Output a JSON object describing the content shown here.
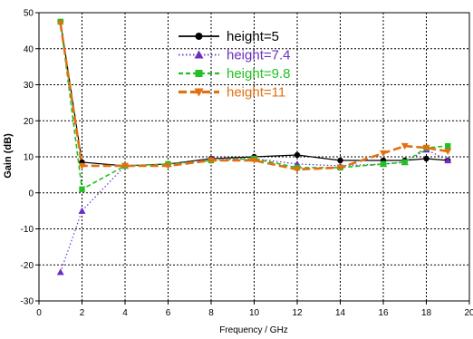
{
  "chart_data": {
    "type": "line",
    "title": "",
    "xlabel": "Frequency / GHz",
    "ylabel": "Gain (dB)",
    "xlim": [
      0,
      20
    ],
    "ylim": [
      -30,
      50
    ],
    "xticks": [
      0,
      2,
      4,
      6,
      8,
      10,
      12,
      14,
      16,
      18,
      20
    ],
    "yticks": [
      -30,
      -20,
      -10,
      0,
      10,
      20,
      30,
      40,
      50
    ],
    "grid": true,
    "legend_position": "top-center",
    "series": [
      {
        "name": "height=5",
        "color": "#000000",
        "marker": "circle",
        "line_style": "solid",
        "x": [
          1,
          2,
          4,
          6,
          8,
          10,
          12,
          14,
          16,
          17,
          18,
          19
        ],
        "y": [
          47.5,
          8.5,
          7.5,
          8,
          9.5,
          10,
          10.5,
          9,
          9,
          9,
          9.5,
          9
        ]
      },
      {
        "name": "height=7.4",
        "color": "#6a2fc0",
        "marker": "triangle-up",
        "line_style": "dotted",
        "x": [
          1,
          2,
          4,
          6,
          8,
          10,
          12,
          14,
          16,
          17,
          18,
          19
        ],
        "y": [
          -22,
          -5,
          7.5,
          8,
          9.5,
          9.5,
          8,
          7.5,
          8,
          8.5,
          12,
          9
        ]
      },
      {
        "name": "height=9.8",
        "color": "#22c022",
        "marker": "square",
        "line_style": "dashed",
        "x": [
          1,
          2,
          4,
          6,
          8,
          10,
          12,
          14,
          16,
          17,
          18,
          19
        ],
        "y": [
          47.5,
          1,
          7.5,
          8,
          9,
          9.5,
          7,
          7,
          8,
          8.5,
          12.5,
          13
        ]
      },
      {
        "name": "height=11",
        "color": "#e07010",
        "marker": "triangle-down",
        "line_style": "long-dash",
        "x": [
          1,
          2,
          4,
          6,
          8,
          10,
          12,
          14,
          16,
          17,
          18,
          19
        ],
        "y": [
          47,
          7.5,
          7.5,
          7.5,
          9,
          9,
          6.5,
          7,
          11,
          13,
          12.5,
          11.5
        ]
      }
    ]
  }
}
